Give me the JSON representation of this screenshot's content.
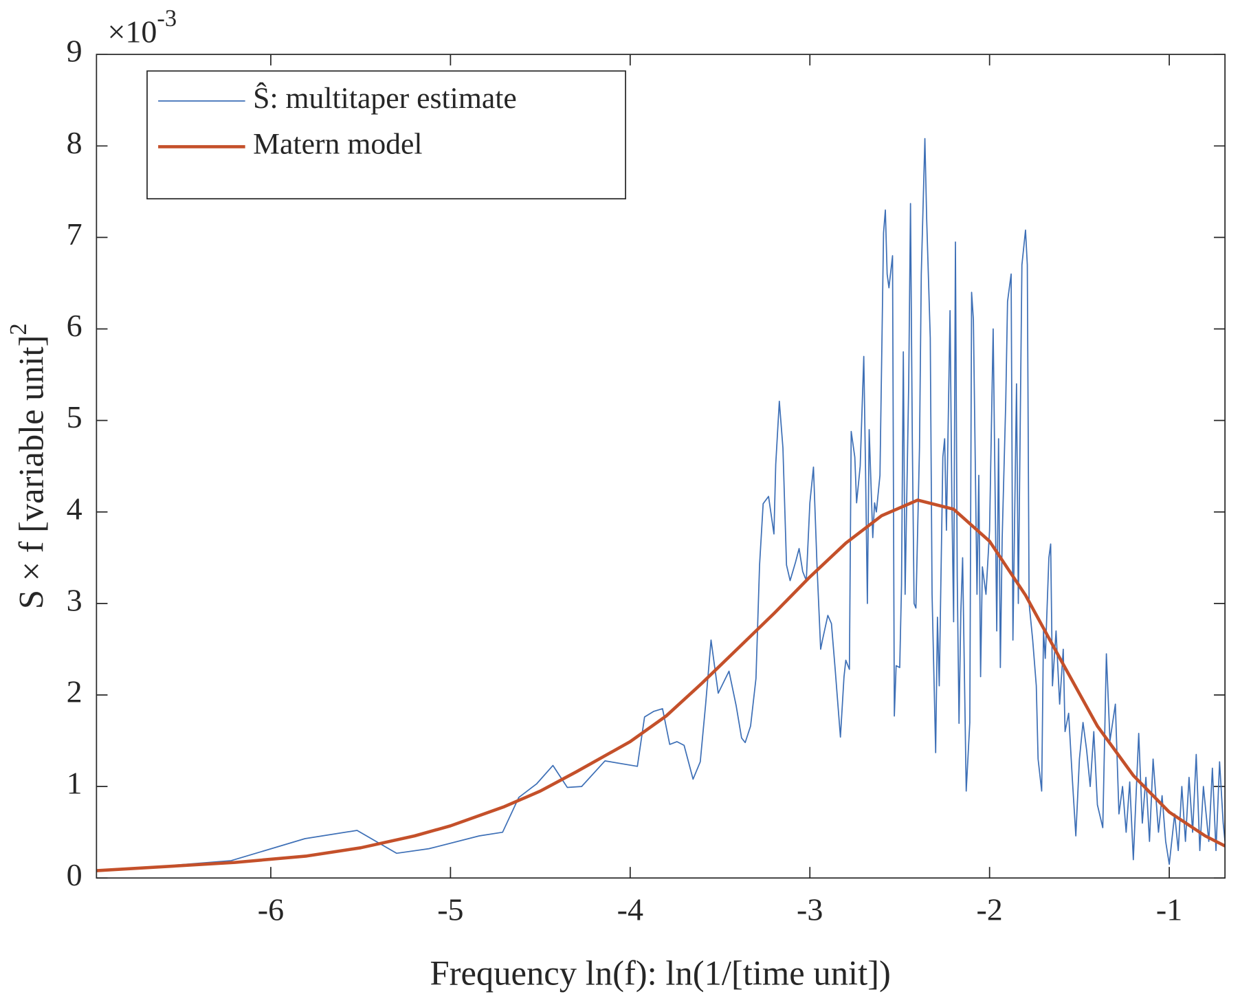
{
  "chart_data": {
    "type": "line",
    "xlabel": "Frequency ln(f): ln(1/[time unit])",
    "ylabel": "S × f [variable unit]",
    "ylabel_superscript": "2",
    "y_multiplier": "×10",
    "y_multiplier_exponent": "-3",
    "xlim": [
      -6.97,
      -0.69
    ],
    "ylim": [
      0,
      9
    ],
    "xticks": [
      -6,
      -5,
      -4,
      -3,
      -2,
      -1
    ],
    "yticks": [
      0,
      1,
      2,
      3,
      4,
      5,
      6,
      7,
      8,
      9
    ],
    "grid": false,
    "legend_position": "upper-left",
    "series": [
      {
        "name": "Ŝ: multitaper estimate",
        "color": "#3d6fb6",
        "line_width": 1.5,
        "x": [
          -6.97,
          -6.22,
          -5.81,
          -5.52,
          -5.3,
          -5.12,
          -4.84,
          -4.71,
          -4.62,
          -4.52,
          -4.43,
          -4.35,
          -4.27,
          -4.14,
          -3.96,
          -3.92,
          -3.87,
          -3.82,
          -3.78,
          -3.74,
          -3.7,
          -3.65,
          -3.61,
          -3.58,
          -3.55,
          -3.51,
          -3.45,
          -3.41,
          -3.38,
          -3.36,
          -3.33,
          -3.3,
          -3.28,
          -3.26,
          -3.23,
          -3.2,
          -3.19,
          -3.17,
          -3.15,
          -3.13,
          -3.11,
          -3.08,
          -3.06,
          -3.04,
          -3.02,
          -3.0,
          -2.98,
          -2.96,
          -2.94,
          -2.93,
          -2.9,
          -2.88,
          -2.86,
          -2.83,
          -2.81,
          -2.8,
          -2.78,
          -2.77,
          -2.75,
          -2.74,
          -2.72,
          -2.7,
          -2.69,
          -2.68,
          -2.67,
          -2.65,
          -2.64,
          -2.63,
          -2.61,
          -2.59,
          -2.58,
          -2.57,
          -2.56,
          -2.54,
          -2.53,
          -2.52,
          -2.5,
          -2.49,
          -2.48,
          -2.47,
          -2.45,
          -2.44,
          -2.43,
          -2.42,
          -2.41,
          -2.39,
          -2.38,
          -2.36,
          -2.35,
          -2.33,
          -2.32,
          -2.3,
          -2.29,
          -2.28,
          -2.26,
          -2.25,
          -2.24,
          -2.22,
          -2.21,
          -2.2,
          -2.19,
          -2.18,
          -2.17,
          -2.16,
          -2.15,
          -2.13,
          -2.11,
          -2.1,
          -2.09,
          -2.07,
          -2.06,
          -2.05,
          -2.04,
          -2.02,
          -2.0,
          -1.98,
          -1.96,
          -1.95,
          -1.94,
          -1.93,
          -1.91,
          -1.9,
          -1.88,
          -1.87,
          -1.85,
          -1.84,
          -1.82,
          -1.8,
          -1.79,
          -1.78,
          -1.76,
          -1.74,
          -1.73,
          -1.71,
          -1.7,
          -1.69,
          -1.67,
          -1.66,
          -1.65,
          -1.63,
          -1.61,
          -1.59,
          -1.58,
          -1.56,
          -1.54,
          -1.52,
          -1.5,
          -1.48,
          -1.46,
          -1.44,
          -1.42,
          -1.4,
          -1.37,
          -1.35,
          -1.33,
          -1.3,
          -1.28,
          -1.26,
          -1.24,
          -1.22,
          -1.2,
          -1.17,
          -1.15,
          -1.13,
          -1.11,
          -1.09,
          -1.06,
          -1.04,
          -1.02,
          -1.0,
          -0.97,
          -0.95,
          -0.93,
          -0.91,
          -0.89,
          -0.87,
          -0.85,
          -0.83,
          -0.81,
          -0.78,
          -0.76,
          -0.74,
          -0.72,
          -0.7,
          -0.69
        ],
        "values": [
          0.07,
          0.19,
          0.43,
          0.52,
          0.27,
          0.32,
          0.46,
          0.5,
          0.88,
          1.03,
          1.23,
          0.99,
          1.0,
          1.28,
          1.22,
          1.76,
          1.82,
          1.85,
          1.46,
          1.49,
          1.45,
          1.08,
          1.27,
          1.9,
          2.6,
          2.02,
          2.26,
          1.88,
          1.53,
          1.48,
          1.66,
          2.18,
          3.42,
          4.09,
          4.17,
          3.76,
          4.52,
          5.21,
          4.7,
          3.42,
          3.25,
          3.45,
          3.6,
          3.35,
          3.25,
          4.1,
          4.49,
          3.4,
          2.5,
          2.6,
          2.87,
          2.78,
          2.3,
          1.54,
          2.2,
          2.38,
          2.28,
          4.88,
          4.6,
          4.1,
          4.5,
          5.7,
          4.43,
          3.0,
          4.9,
          3.72,
          4.1,
          4.0,
          4.4,
          7.05,
          7.3,
          6.6,
          6.45,
          6.8,
          1.77,
          2.32,
          2.3,
          3.2,
          5.75,
          3.1,
          5.4,
          7.37,
          4.8,
          3.0,
          2.95,
          4.7,
          6.6,
          8.08,
          7.2,
          5.9,
          3.1,
          1.37,
          2.85,
          2.1,
          4.6,
          4.8,
          3.8,
          6.2,
          4.15,
          2.8,
          6.95,
          3.3,
          1.69,
          2.9,
          3.5,
          0.95,
          1.7,
          6.4,
          6.1,
          3.1,
          4.4,
          2.2,
          3.4,
          3.1,
          3.8,
          6.0,
          2.7,
          4.8,
          2.3,
          3.7,
          5.2,
          6.3,
          6.6,
          2.6,
          5.4,
          3.0,
          6.7,
          7.08,
          6.7,
          3.0,
          2.6,
          2.1,
          1.3,
          0.95,
          2.7,
          2.4,
          3.5,
          3.65,
          2.1,
          2.7,
          1.9,
          2.5,
          1.6,
          1.8,
          1.1,
          0.46,
          1.3,
          1.7,
          1.4,
          1.0,
          1.6,
          0.8,
          0.55,
          2.45,
          1.5,
          1.9,
          0.7,
          1.0,
          0.5,
          1.05,
          0.2,
          1.58,
          0.6,
          1.1,
          0.4,
          1.3,
          0.5,
          0.9,
          0.4,
          0.15,
          0.7,
          0.3,
          1.0,
          0.4,
          1.1,
          0.5,
          1.35,
          0.3,
          1.0,
          0.4,
          1.2,
          0.3,
          1.27,
          0.6,
          0.4
        ]
      },
      {
        "name": "Matern model",
        "color": "#c4502a",
        "line_width": 4,
        "x": [
          -6.97,
          -6.2,
          -5.8,
          -5.5,
          -5.2,
          -5.0,
          -4.7,
          -4.5,
          -4.3,
          -4.0,
          -3.8,
          -3.6,
          -3.4,
          -3.2,
          -3.0,
          -2.8,
          -2.6,
          -2.4,
          -2.2,
          -2.0,
          -1.8,
          -1.6,
          -1.4,
          -1.2,
          -1.0,
          -0.8,
          -0.69
        ],
        "values": [
          0.08,
          0.17,
          0.24,
          0.33,
          0.46,
          0.57,
          0.78,
          0.95,
          1.16,
          1.49,
          1.77,
          2.13,
          2.51,
          2.89,
          3.29,
          3.66,
          3.96,
          4.13,
          4.03,
          3.68,
          3.09,
          2.37,
          1.66,
          1.12,
          0.72,
          0.46,
          0.35
        ]
      }
    ]
  }
}
